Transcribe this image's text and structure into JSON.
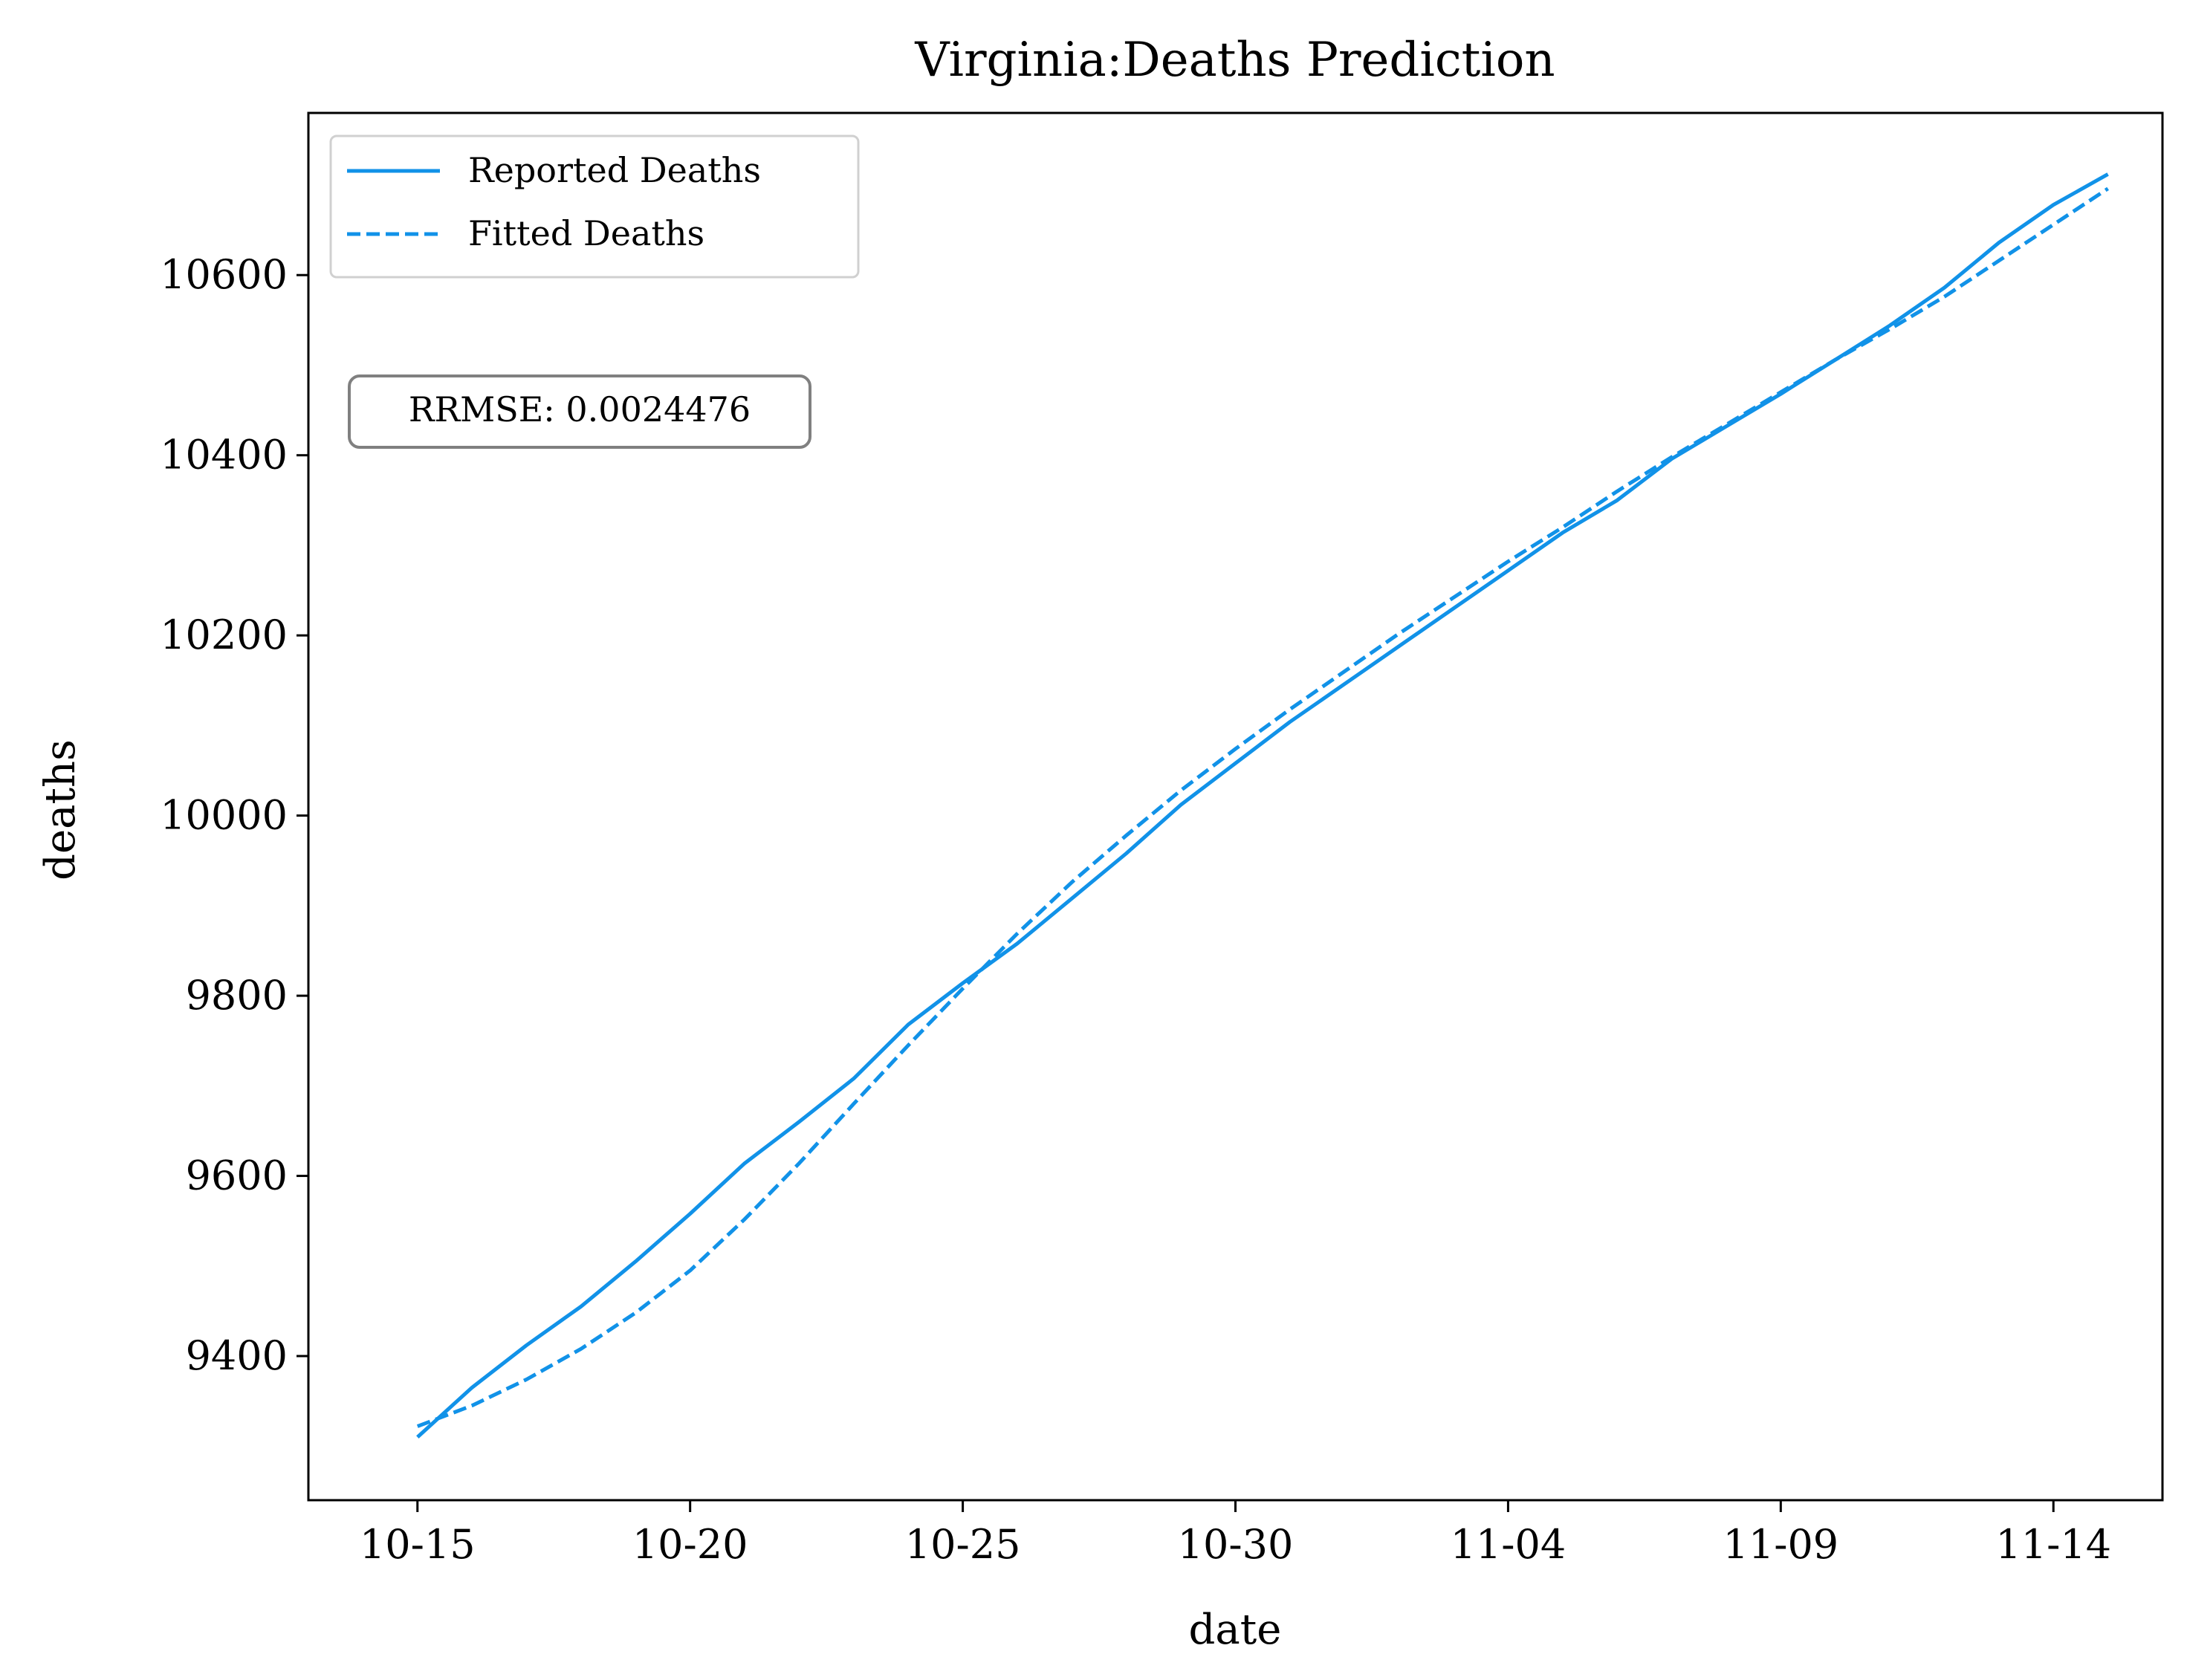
{
  "chart_data": {
    "type": "line",
    "title": "Virginia:Deaths Prediction",
    "xlabel": "date",
    "ylabel": "deaths",
    "xlim": [
      "10-13.5",
      "11-16.5"
    ],
    "ylim": [
      9240,
      10780
    ],
    "x_ticks": [
      "10-15",
      "10-20",
      "10-25",
      "10-30",
      "11-04",
      "11-09",
      "11-14"
    ],
    "y_ticks": [
      9400,
      9600,
      9800,
      10000,
      10200,
      10400,
      10600
    ],
    "x": [
      "10-15",
      "10-16",
      "10-17",
      "10-18",
      "10-19",
      "10-20",
      "10-21",
      "10-22",
      "10-23",
      "10-24",
      "10-25",
      "10-26",
      "10-27",
      "10-28",
      "10-29",
      "10-30",
      "10-31",
      "11-01",
      "11-02",
      "11-03",
      "11-04",
      "11-05",
      "11-06",
      "11-07",
      "11-08",
      "11-09",
      "11-10",
      "11-11",
      "11-12",
      "11-13",
      "11-14",
      "11-15"
    ],
    "series": [
      {
        "name": "Reported Deaths",
        "style": "solid",
        "color": "#1192e8",
        "values": [
          9310,
          9365,
          9412,
          9455,
          9505,
          9558,
          9614,
          9660,
          9708,
          9768,
          9814,
          9858,
          9908,
          9958,
          10012,
          10058,
          10104,
          10146,
          10188,
          10230,
          10272,
          10314,
          10350,
          10396,
          10432,
          10468,
          10506,
          10544,
          10586,
          10636,
          10678,
          10712
        ]
      },
      {
        "name": "Fitted Deaths",
        "style": "dashed",
        "color": "#1192e8",
        "values": [
          9322,
          9345,
          9374,
          9408,
          9448,
          9495,
          9552,
          9614,
          9680,
          9745,
          9808,
          9869,
          9926,
          9978,
          10028,
          10074,
          10118,
          10160,
          10202,
          10242,
          10282,
          10320,
          10360,
          10398,
          10434,
          10470,
          10506,
          10540,
          10576,
          10616,
          10656,
          10696
        ]
      }
    ],
    "grid": false,
    "legend": "top-left",
    "annotation": "RRMSE: 0.0024476"
  }
}
